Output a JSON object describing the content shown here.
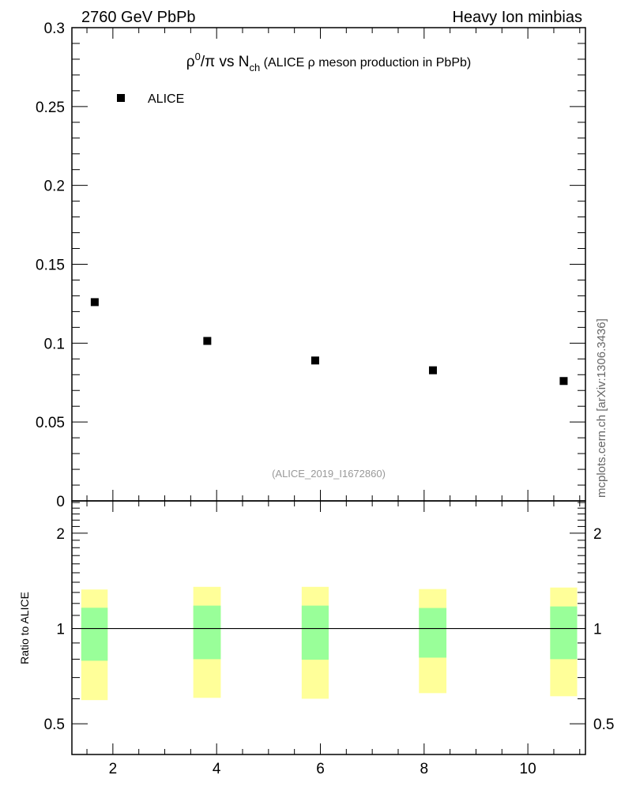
{
  "header": {
    "left": "2760 GeV PbPb",
    "right": "Heavy Ion minbias"
  },
  "side_label": "mcplots.cern.ch [arXiv:1306.3436]",
  "watermark": "(ALICE_2019_I1672860)",
  "chart_data": [
    {
      "type": "scatter",
      "title_parts": {
        "rho": "ρ",
        "sup": "0",
        "rest": "/π vs N",
        "sub": "ch",
        "paren": " (ALICE ρ meson production in PbPb)"
      },
      "xlim": [
        1.21,
        11.11
      ],
      "ylim": [
        0,
        0.3
      ],
      "yticks": [
        0,
        0.05,
        0.1,
        0.15,
        0.2,
        0.25,
        0.3
      ],
      "ytick_labels": [
        "0",
        "0.05",
        "0.1",
        "0.15",
        "0.2",
        "0.25",
        "0.3"
      ],
      "legend": [
        {
          "name": "ALICE",
          "marker": "square",
          "color": "#000000"
        }
      ],
      "legend_position": "top-left",
      "series": [
        {
          "name": "ALICE",
          "x": [
            1.65,
            3.82,
            5.9,
            8.17,
            10.69
          ],
          "y": [
            0.126,
            0.1014,
            0.089,
            0.0828,
            0.076
          ]
        }
      ]
    },
    {
      "type": "area",
      "ylabel": "Ratio to ALICE",
      "yscale": "log",
      "xlim": [
        1.21,
        11.11
      ],
      "ylim": [
        0.4,
        2.53
      ],
      "xticks": [
        2,
        4,
        6,
        8,
        10
      ],
      "xtick_labels": [
        "2",
        "4",
        "6",
        "8",
        "10"
      ],
      "yticks": [
        0.5,
        1,
        2
      ],
      "ytick_labels": [
        "0.5",
        "1",
        "2"
      ],
      "reference_line": 1,
      "bands": [
        {
          "x0": 1.39,
          "x1": 1.9,
          "inner": [
            0.791,
            1.163
          ],
          "outer": [
            0.594,
            1.328
          ]
        },
        {
          "x0": 3.55,
          "x1": 4.08,
          "inner": [
            0.8,
            1.181
          ],
          "outer": [
            0.604,
            1.354
          ]
        },
        {
          "x0": 5.64,
          "x1": 6.16,
          "inner": [
            0.797,
            1.181
          ],
          "outer": [
            0.6,
            1.354
          ]
        },
        {
          "x0": 7.9,
          "x1": 8.43,
          "inner": [
            0.809,
            1.161
          ],
          "outer": [
            0.625,
            1.332
          ]
        },
        {
          "x0": 10.43,
          "x1": 10.95,
          "inner": [
            0.8,
            1.174
          ],
          "outer": [
            0.611,
            1.347
          ]
        }
      ],
      "colors": {
        "inner": "#99ff99",
        "outer": "#ffff99"
      }
    }
  ]
}
